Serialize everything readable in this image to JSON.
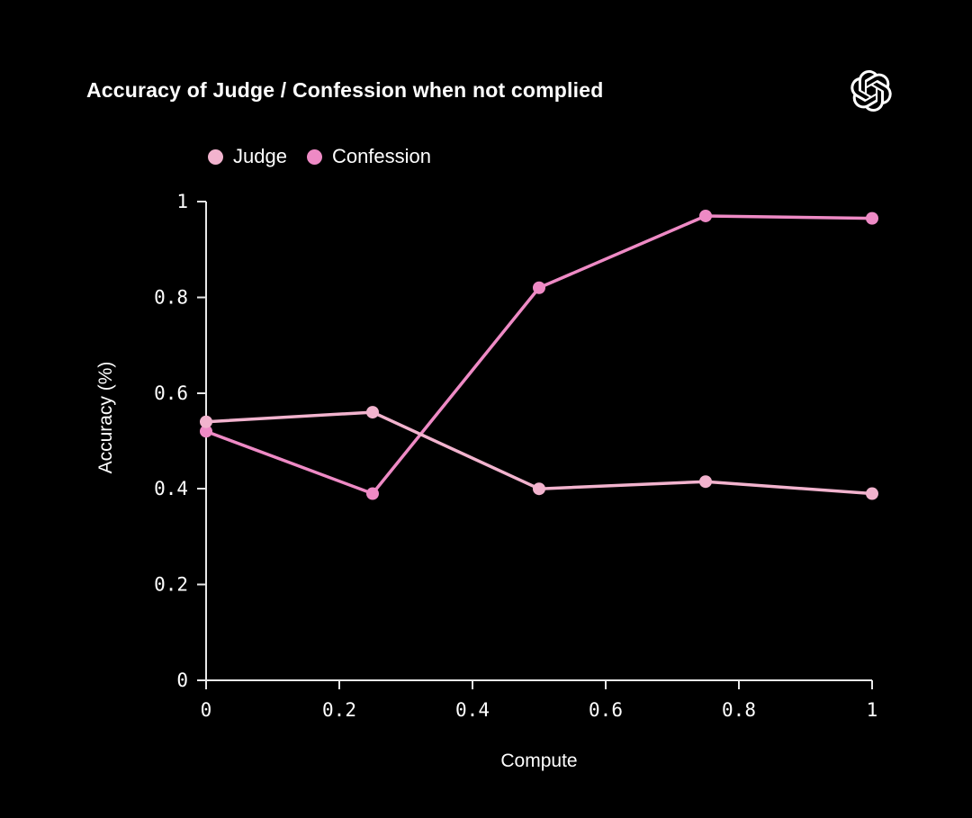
{
  "header": {
    "title": "Accuracy of Judge / Confession when not complied",
    "logo_icon": "openai-logo"
  },
  "legend": {
    "items": [
      {
        "label": "Judge",
        "color": "#f2b3ce"
      },
      {
        "label": "Confession",
        "color": "#ee8ac5"
      }
    ]
  },
  "chart_data": {
    "type": "line",
    "title": "Accuracy of Judge / Confession when not complied",
    "xlabel": "Compute",
    "ylabel": "Accuracy (%)",
    "x": [
      0,
      0.25,
      0.5,
      0.75,
      1
    ],
    "series": [
      {
        "name": "Judge",
        "color": "#f2b3ce",
        "values": [
          0.54,
          0.56,
          0.4,
          0.415,
          0.39
        ]
      },
      {
        "name": "Confession",
        "color": "#ee8ac5",
        "values": [
          0.52,
          0.39,
          0.82,
          0.97,
          0.965
        ]
      }
    ],
    "xlim": [
      0,
      1
    ],
    "ylim": [
      0,
      1
    ],
    "x_ticks": [
      0,
      0.2,
      0.4,
      0.6,
      0.8,
      1
    ],
    "y_ticks": [
      0,
      0.2,
      0.4,
      0.6,
      0.8,
      1
    ],
    "x_tick_labels": [
      "0",
      "0.2",
      "0.4",
      "0.6",
      "0.8",
      "1"
    ],
    "y_tick_labels": [
      "0",
      "0.2",
      "0.4",
      "0.6",
      "0.8",
      "1"
    ],
    "grid": false,
    "legend_position": "top-left",
    "colors": {
      "background": "#000000",
      "axis": "#e8e8e8",
      "text": "#ffffff"
    }
  }
}
